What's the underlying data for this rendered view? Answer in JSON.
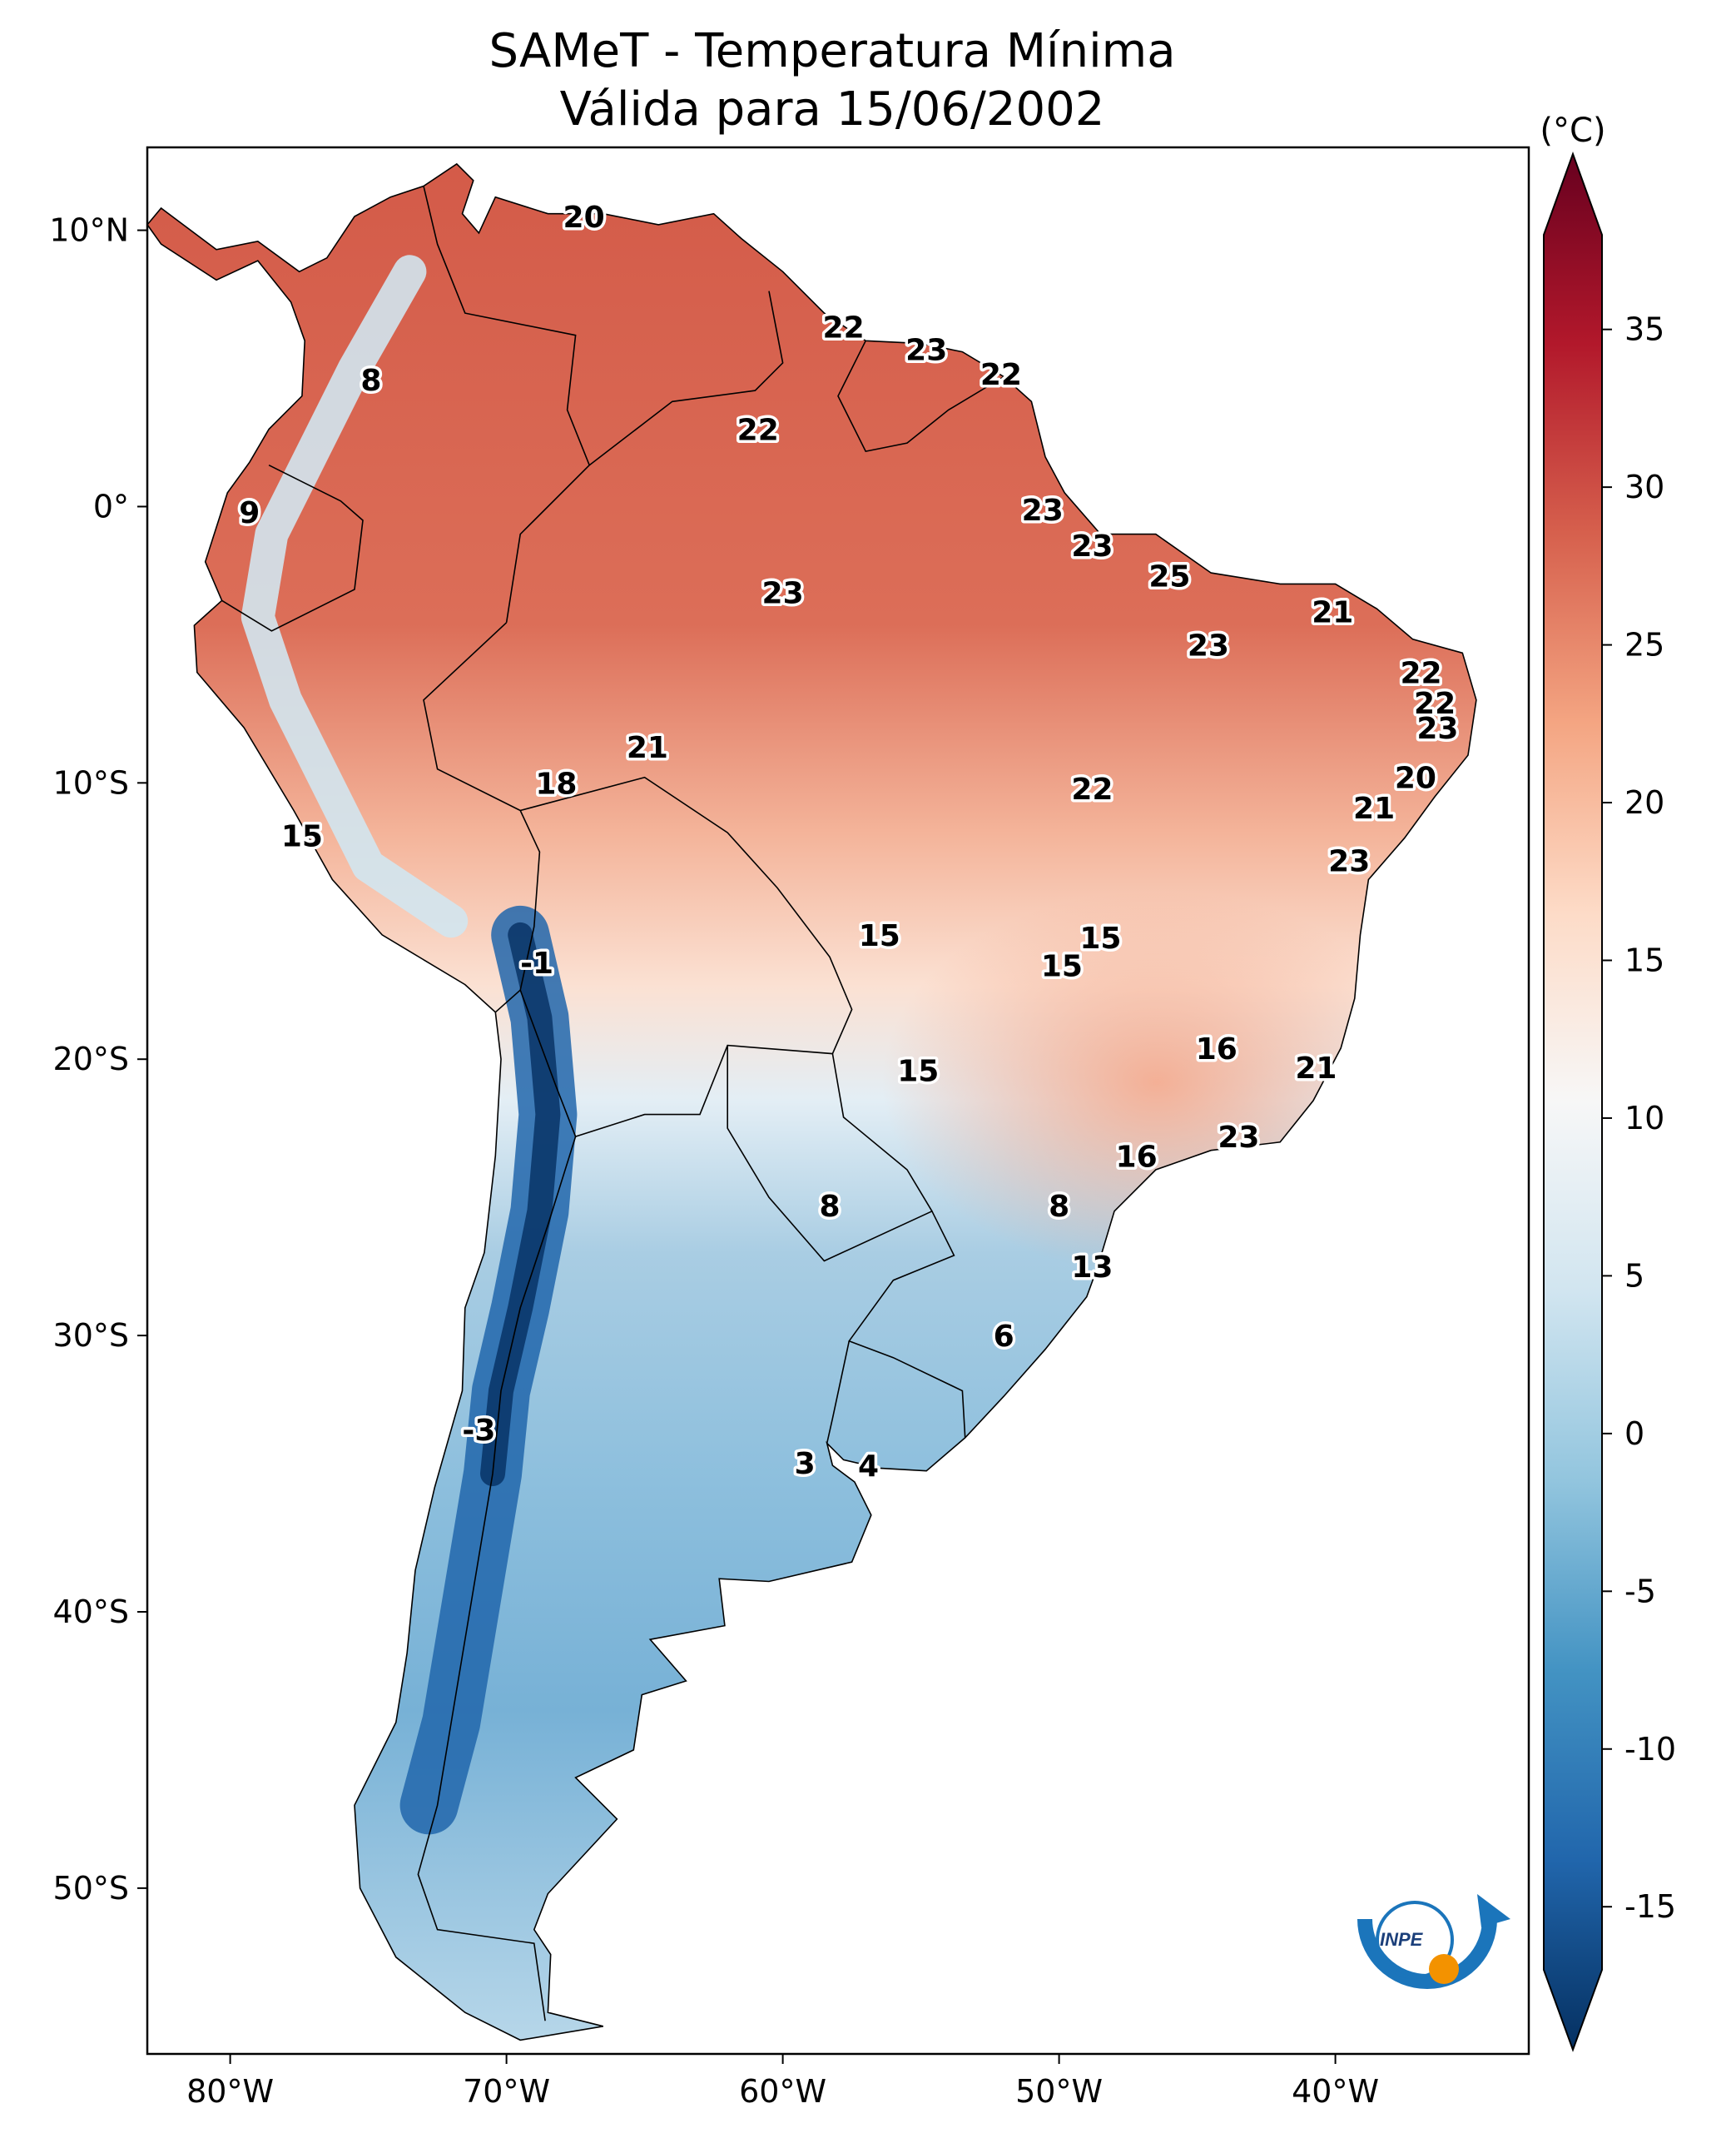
{
  "title": [
    "SAMeT - Temperatura Mínima",
    "Válida para 15/06/2002"
  ],
  "map": {
    "lon_ticks": [
      "80°W",
      "70°W",
      "60°W",
      "50°W",
      "40°W"
    ],
    "lat_ticks": [
      "10°N",
      "0°",
      "10°S",
      "20°S",
      "30°S",
      "40°S",
      "50°S"
    ],
    "lon_range": [
      -83,
      -33
    ],
    "lat_range": [
      -56,
      13
    ]
  },
  "colorbar": {
    "unit": "(°C)",
    "ticks": [
      "35",
      "30",
      "25",
      "20",
      "15",
      "10",
      "5",
      "0",
      "-5",
      "-10",
      "-15"
    ],
    "range": [
      -17,
      38
    ],
    "extend": "both",
    "colormap": "RdBu_r",
    "colors": [
      "#053061",
      "#2166ac",
      "#4393c3",
      "#92c5de",
      "#d1e5f0",
      "#f7f7f7",
      "#fddbc7",
      "#f4a582",
      "#d6604d",
      "#b2182b",
      "#67001f"
    ]
  },
  "station_labels": [
    {
      "text": "20",
      "lon": -67.2,
      "lat": 10.5
    },
    {
      "text": "22",
      "lon": -57.8,
      "lat": 6.5
    },
    {
      "text": "23",
      "lon": -54.8,
      "lat": 5.7
    },
    {
      "text": "22",
      "lon": -52.1,
      "lat": 4.8
    },
    {
      "text": "8",
      "lon": -74.9,
      "lat": 4.6
    },
    {
      "text": "22",
      "lon": -60.9,
      "lat": 2.8
    },
    {
      "text": "9",
      "lon": -79.3,
      "lat": -0.2
    },
    {
      "text": "23",
      "lon": -50.6,
      "lat": -0.1
    },
    {
      "text": "23",
      "lon": -48.8,
      "lat": -1.4
    },
    {
      "text": "25",
      "lon": -46.0,
      "lat": -2.5
    },
    {
      "text": "23",
      "lon": -60.0,
      "lat": -3.1
    },
    {
      "text": "21",
      "lon": -40.1,
      "lat": -3.8
    },
    {
      "text": "23",
      "lon": -44.6,
      "lat": -5.0
    },
    {
      "text": "22",
      "lon": -36.9,
      "lat": -6.0
    },
    {
      "text": "22",
      "lon": -36.4,
      "lat": -7.1
    },
    {
      "text": "23",
      "lon": -36.3,
      "lat": -8.0
    },
    {
      "text": "21",
      "lon": -64.9,
      "lat": -8.7
    },
    {
      "text": "20",
      "lon": -37.1,
      "lat": -9.8
    },
    {
      "text": "18",
      "lon": -68.2,
      "lat": -10.0
    },
    {
      "text": "22",
      "lon": -48.8,
      "lat": -10.2
    },
    {
      "text": "21",
      "lon": -38.6,
      "lat": -10.9
    },
    {
      "text": "15",
      "lon": -77.4,
      "lat": -11.9
    },
    {
      "text": "23",
      "lon": -39.5,
      "lat": -12.8
    },
    {
      "text": "15",
      "lon": -56.5,
      "lat": -15.5
    },
    {
      "text": "15",
      "lon": -48.5,
      "lat": -15.6
    },
    {
      "text": "15",
      "lon": -49.9,
      "lat": -16.6
    },
    {
      "text": "-1",
      "lon": -68.9,
      "lat": -16.5
    },
    {
      "text": "16",
      "lon": -44.3,
      "lat": -19.6
    },
    {
      "text": "21",
      "lon": -40.7,
      "lat": -20.3
    },
    {
      "text": "15",
      "lon": -55.1,
      "lat": -20.4
    },
    {
      "text": "23",
      "lon": -43.5,
      "lat": -22.8
    },
    {
      "text": "16",
      "lon": -47.2,
      "lat": -23.5
    },
    {
      "text": "8",
      "lon": -58.3,
      "lat": -25.3
    },
    {
      "text": "8",
      "lon": -50.0,
      "lat": -25.3
    },
    {
      "text": "13",
      "lon": -48.8,
      "lat": -27.5
    },
    {
      "text": "6",
      "lon": -52.0,
      "lat": -30.0
    },
    {
      "text": "-3",
      "lon": -71.0,
      "lat": -33.4
    },
    {
      "text": "3",
      "lon": -59.2,
      "lat": -34.6
    },
    {
      "text": "4",
      "lon": -56.9,
      "lat": -34.7
    }
  ],
  "logo": {
    "text": "INPE"
  }
}
